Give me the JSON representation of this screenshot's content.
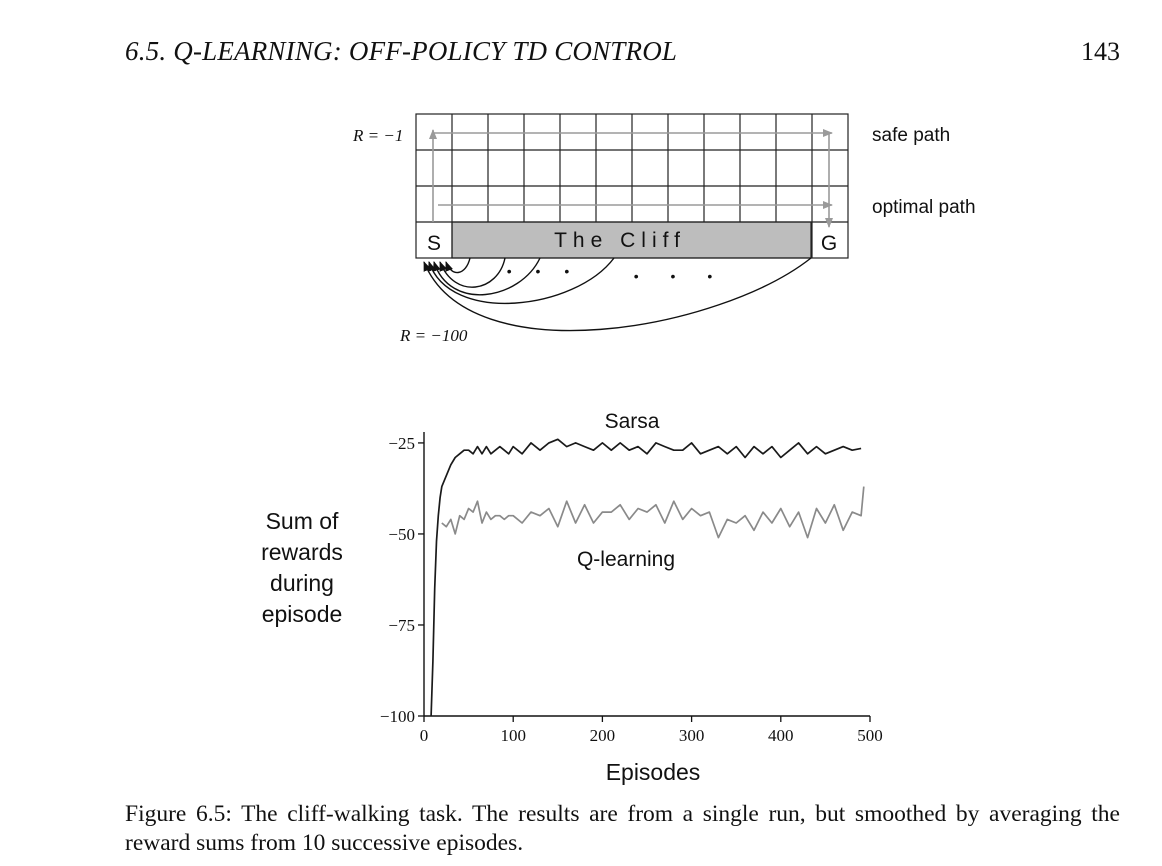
{
  "header": {
    "section_title": "6.5.  Q-LEARNING: OFF-POLICY TD CONTROL",
    "page_number": "143"
  },
  "cliff_diagram": {
    "reward_step": "R = −1",
    "reward_cliff": "R = −100",
    "start_label": "S",
    "goal_label": "G",
    "cliff_label": "The Cliff",
    "safe_path_label": "safe path",
    "optimal_path_label": "optimal path",
    "dots": "• • •"
  },
  "chart_data": {
    "type": "line",
    "title": "",
    "xlabel": "Episodes",
    "ylabel": "Sum of rewards during episode",
    "ylabel_lines": [
      "Sum of",
      "rewards",
      "during",
      "episode"
    ],
    "xlim": [
      0,
      500
    ],
    "ylim": [
      -100,
      -22
    ],
    "x_ticks": [
      "0",
      "100",
      "200",
      "300",
      "400",
      "500"
    ],
    "y_ticks": [
      "−25",
      "−50",
      "−75",
      "−100"
    ],
    "grid": false,
    "colors": {
      "Sarsa": "#1a1a1a",
      "Q-learning": "#8a8a8a"
    },
    "series": [
      {
        "name": "Sarsa",
        "x": [
          8,
          10,
          12,
          14,
          16,
          18,
          20,
          25,
          30,
          35,
          40,
          45,
          50,
          55,
          60,
          65,
          70,
          75,
          80,
          85,
          90,
          95,
          100,
          110,
          120,
          130,
          140,
          150,
          160,
          170,
          180,
          190,
          200,
          210,
          220,
          230,
          240,
          250,
          260,
          270,
          280,
          290,
          300,
          310,
          320,
          330,
          340,
          350,
          360,
          370,
          380,
          390,
          400,
          410,
          420,
          430,
          440,
          450,
          460,
          470,
          480,
          490
        ],
        "values": [
          -100,
          -85,
          -65,
          -52,
          -45,
          -40,
          -37,
          -34,
          -31,
          -29,
          -28,
          -27,
          -27,
          -28,
          -26,
          -28,
          -26,
          -28,
          -27,
          -26,
          -27,
          -28,
          -26,
          -28,
          -25,
          -27,
          -25,
          -24,
          -26,
          -25,
          -26,
          -27,
          -25,
          -27,
          -25,
          -27,
          -26,
          -28,
          -25,
          -26,
          -27,
          -27,
          -25,
          -28,
          -27,
          -26,
          -28,
          -26,
          -29,
          -26,
          -28,
          -26,
          -29,
          -27,
          -25,
          -28,
          -26,
          -28,
          -27,
          -26,
          -27,
          -26.5
        ]
      },
      {
        "name": "Q-learning",
        "x": [
          20,
          25,
          30,
          35,
          40,
          45,
          50,
          55,
          60,
          65,
          70,
          75,
          80,
          85,
          90,
          95,
          100,
          110,
          120,
          130,
          140,
          150,
          160,
          170,
          180,
          190,
          200,
          210,
          220,
          230,
          240,
          250,
          260,
          270,
          280,
          290,
          300,
          310,
          320,
          330,
          340,
          350,
          360,
          370,
          380,
          390,
          400,
          410,
          420,
          430,
          440,
          450,
          460,
          470,
          480,
          490,
          493
        ],
        "values": [
          -47,
          -48,
          -46,
          -50,
          -45,
          -46,
          -43,
          -44,
          -41,
          -47,
          -44,
          -46,
          -45,
          -45,
          -46,
          -45,
          -45,
          -47,
          -44,
          -45,
          -43,
          -48,
          -41,
          -47,
          -42,
          -47,
          -44,
          -44,
          -42,
          -46,
          -43,
          -44,
          -42,
          -47,
          -41,
          -46,
          -43,
          -45,
          -44,
          -51,
          -46,
          -47,
          -45,
          -49,
          -44,
          -47,
          -43,
          -48,
          -44,
          -51,
          -43,
          -47,
          -42,
          -49,
          -44,
          -45,
          -37
        ]
      }
    ],
    "series_labels": {
      "sarsa": "Sarsa",
      "qlearning": "Q-learning"
    }
  },
  "caption": {
    "label": "Figure 6.5:",
    "text": "The cliff-walking task.  The results are from a single run, but smoothed by averaging the reward sums from 10 successive episodes."
  }
}
